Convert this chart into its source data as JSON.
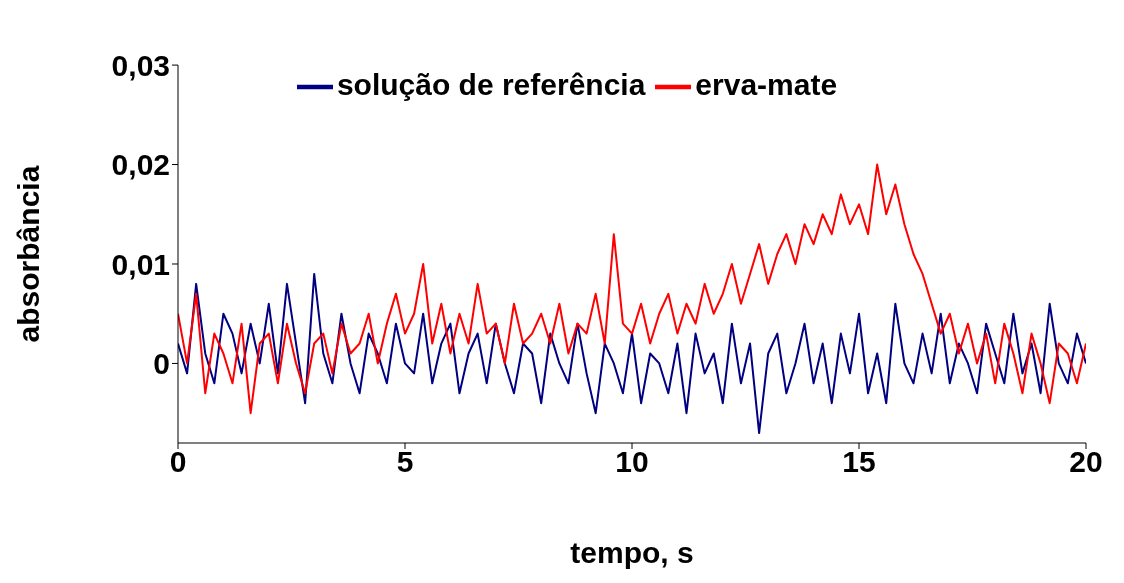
{
  "chart_data": {
    "type": "line",
    "xlabel": "tempo, s",
    "ylabel": "absorbância",
    "xlim": [
      0,
      20
    ],
    "xticks": [
      0,
      5,
      10,
      15,
      20
    ],
    "ylim": [
      -0.008,
      0.03
    ],
    "yticks": [
      {
        "value": 0,
        "label": "0"
      },
      {
        "value": 0.01,
        "label": "0,01"
      },
      {
        "value": 0.02,
        "label": "0,02"
      },
      {
        "value": 0.03,
        "label": "0,03"
      }
    ],
    "grid": false,
    "legend": "top",
    "marker": "none",
    "x": [
      0,
      0.2,
      0.4,
      0.6,
      0.8,
      1,
      1.2,
      1.4,
      1.6,
      1.8,
      2,
      2.2,
      2.4,
      2.6,
      2.8,
      3,
      3.2,
      3.4,
      3.6,
      3.8,
      4,
      4.2,
      4.4,
      4.6,
      4.8,
      5,
      5.2,
      5.4,
      5.6,
      5.8,
      6,
      6.2,
      6.4,
      6.6,
      6.8,
      7,
      7.2,
      7.4,
      7.6,
      7.8,
      8,
      8.2,
      8.4,
      8.6,
      8.8,
      9,
      9.2,
      9.4,
      9.6,
      9.8,
      10,
      10.2,
      10.4,
      10.6,
      10.8,
      11,
      11.2,
      11.4,
      11.6,
      11.8,
      12,
      12.2,
      12.4,
      12.6,
      12.8,
      13,
      13.2,
      13.4,
      13.6,
      13.8,
      14,
      14.2,
      14.4,
      14.6,
      14.8,
      15,
      15.2,
      15.4,
      15.6,
      15.8,
      16,
      16.2,
      16.4,
      16.6,
      16.8,
      17,
      17.2,
      17.4,
      17.6,
      17.8,
      18,
      18.2,
      18.4,
      18.6,
      18.8,
      19,
      19.2,
      19.4,
      19.6,
      19.8,
      20
    ],
    "series": [
      {
        "name": "solução de referência",
        "color": "#000080",
        "values": [
          0.002,
          -0.001,
          0.008,
          0.001,
          -0.002,
          0.005,
          0.003,
          -0.001,
          0.004,
          0.0,
          0.006,
          -0.001,
          0.008,
          0.002,
          -0.004,
          0.009,
          0.001,
          -0.002,
          0.005,
          0.0,
          -0.003,
          0.003,
          0.001,
          -0.002,
          0.004,
          0.0,
          -0.001,
          0.005,
          -0.002,
          0.002,
          0.004,
          -0.003,
          0.001,
          0.003,
          -0.002,
          0.004,
          0.0,
          -0.003,
          0.002,
          0.001,
          -0.004,
          0.003,
          0.0,
          -0.002,
          0.004,
          -0.001,
          -0.005,
          0.002,
          0.0,
          -0.003,
          0.003,
          -0.004,
          0.001,
          0.0,
          -0.003,
          0.002,
          -0.005,
          0.003,
          -0.001,
          0.001,
          -0.004,
          0.004,
          -0.002,
          0.002,
          -0.007,
          0.001,
          0.003,
          -0.003,
          0.0,
          0.004,
          -0.002,
          0.002,
          -0.004,
          0.003,
          -0.001,
          0.005,
          -0.003,
          0.001,
          -0.004,
          0.006,
          0.0,
          -0.002,
          0.003,
          -0.001,
          0.005,
          -0.002,
          0.002,
          0.0,
          -0.003,
          0.004,
          0.001,
          -0.002,
          0.005,
          -0.001,
          0.002,
          -0.003,
          0.006,
          0.0,
          -0.002,
          0.003,
          0.0
        ]
      },
      {
        "name": "erva-mate",
        "color": "#ff0000",
        "values": [
          0.005,
          0.0,
          0.007,
          -0.003,
          0.003,
          0.001,
          -0.002,
          0.004,
          -0.005,
          0.002,
          0.003,
          -0.002,
          0.004,
          0.0,
          -0.003,
          0.002,
          0.003,
          -0.001,
          0.004,
          0.001,
          0.002,
          0.005,
          0.0,
          0.004,
          0.007,
          0.003,
          0.005,
          0.01,
          0.002,
          0.006,
          0.001,
          0.005,
          0.002,
          0.008,
          0.003,
          0.004,
          0.0,
          0.006,
          0.002,
          0.003,
          0.005,
          0.002,
          0.006,
          0.001,
          0.004,
          0.003,
          0.007,
          0.002,
          0.013,
          0.004,
          0.003,
          0.006,
          0.002,
          0.005,
          0.007,
          0.003,
          0.006,
          0.004,
          0.008,
          0.005,
          0.007,
          0.01,
          0.006,
          0.009,
          0.012,
          0.008,
          0.011,
          0.013,
          0.01,
          0.014,
          0.012,
          0.015,
          0.013,
          0.017,
          0.014,
          0.016,
          0.013,
          0.02,
          0.015,
          0.018,
          0.014,
          0.011,
          0.009,
          0.006,
          0.003,
          0.005,
          0.001,
          0.004,
          0.0,
          0.003,
          -0.002,
          0.004,
          0.001,
          -0.003,
          0.003,
          0.0,
          -0.004,
          0.002,
          0.001,
          -0.002,
          0.002
        ]
      }
    ]
  }
}
